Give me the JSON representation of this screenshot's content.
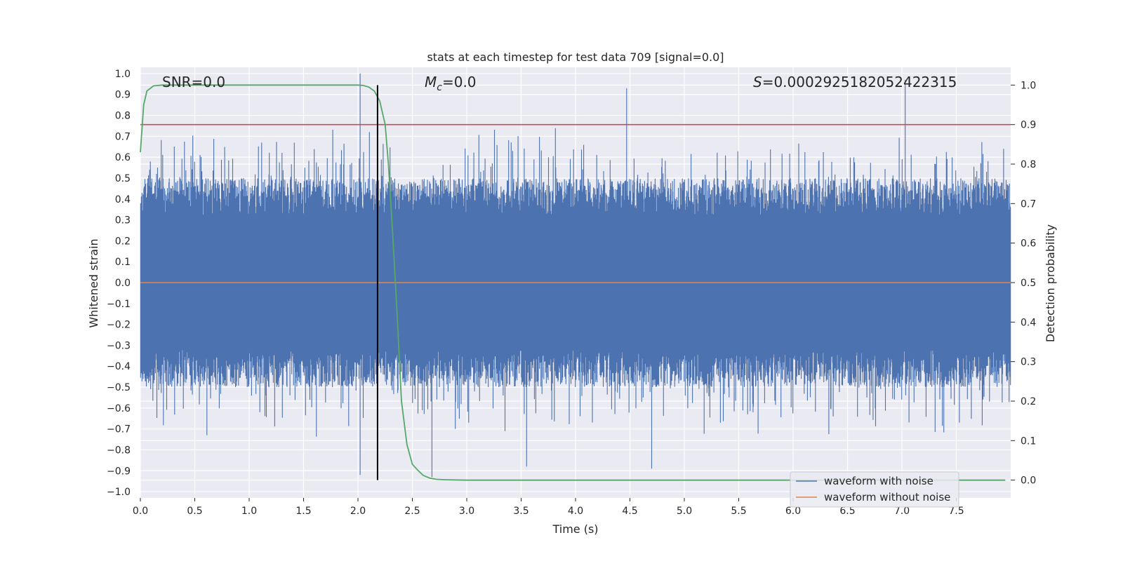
{
  "chart_data": {
    "type": "line",
    "title": "stats at each timestep for test data 709 [signal=0.0]",
    "xlabel": "Time (s)",
    "ylabel_left": "Whitened strain",
    "ylabel_right": "Detection probability",
    "xlim": [
      0,
      8
    ],
    "ylim_left": [
      -1.03,
      1.03
    ],
    "ylim_right": [
      -0.045,
      1.045
    ],
    "x_ticks": [
      "0.0",
      "0.5",
      "1.0",
      "1.5",
      "2.0",
      "2.5",
      "3.0",
      "3.5",
      "4.0",
      "4.5",
      "5.0",
      "5.5",
      "6.0",
      "6.5",
      "7.0",
      "7.5"
    ],
    "y_left_ticks": [
      "1.0",
      "0.9",
      "0.8",
      "0.7",
      "0.6",
      "0.5",
      "0.4",
      "0.3",
      "0.2",
      "0.1",
      "0.0",
      "−0.1",
      "−0.2",
      "−0.3",
      "−0.4",
      "−0.5",
      "−0.6",
      "−0.7",
      "−0.8",
      "−0.9",
      "−1.0"
    ],
    "y_right_ticks": [
      "1.0",
      "0.9",
      "0.8",
      "0.7",
      "0.6",
      "0.5",
      "0.4",
      "0.3",
      "0.2",
      "0.1",
      "0.0"
    ],
    "grid": true,
    "legend_position": "bottom-right",
    "annotations": {
      "snr": "SNR=0.0",
      "mc_symbol": "M",
      "mc_sub": "c",
      "mc_value": "=0.0",
      "s_symbol": "S",
      "s_value": "=0.0002925182052422315"
    },
    "threshold_probability": 0.9,
    "vertical_marker_time": 2.18,
    "series": [
      {
        "name": "waveform with noise",
        "color": "#4c72b0",
        "axis": "left",
        "description_values": {
          "upper_envelope_typical": 0.45,
          "lower_envelope_typical": -0.45,
          "peaks": [
            {
              "x": 2.02,
              "y": 1.0
            },
            {
              "x": 7.03,
              "y": 0.97
            },
            {
              "x": 4.47,
              "y": 0.93
            },
            {
              "x": 2.02,
              "y": -0.92
            },
            {
              "x": 2.68,
              "y": -0.93
            },
            {
              "x": 4.7,
              "y": -0.89
            },
            {
              "x": 3.55,
              "y": -0.88
            }
          ]
        }
      },
      {
        "name": "waveform without noise",
        "color": "#dd8452",
        "axis": "left",
        "x": [
          0,
          8
        ],
        "y": [
          0.0,
          0.0
        ]
      },
      {
        "name": "detection probability",
        "color": "#55a868",
        "axis": "right",
        "x": [
          0.0,
          0.03,
          0.06,
          0.12,
          0.2,
          0.5,
          1.0,
          1.5,
          2.0,
          2.05,
          2.1,
          2.15,
          2.2,
          2.25,
          2.28,
          2.32,
          2.36,
          2.4,
          2.45,
          2.5,
          2.55,
          2.6,
          2.66,
          2.72,
          2.8,
          3.0,
          4.0,
          5.0,
          6.0,
          7.0,
          7.95
        ],
        "y": [
          0.83,
          0.95,
          0.985,
          0.998,
          1.0,
          1.0,
          1.0,
          1.0,
          1.0,
          0.999,
          0.995,
          0.985,
          0.96,
          0.9,
          0.8,
          0.62,
          0.42,
          0.2,
          0.09,
          0.04,
          0.025,
          0.012,
          0.005,
          0.002,
          0.001,
          0.0,
          0.0,
          0.0,
          0.0,
          0.0,
          0.0
        ]
      }
    ],
    "colors": {
      "background": "#eaeaf2",
      "grid": "#ffffff",
      "threshold": "#c44e52",
      "marker": "#000000"
    }
  }
}
